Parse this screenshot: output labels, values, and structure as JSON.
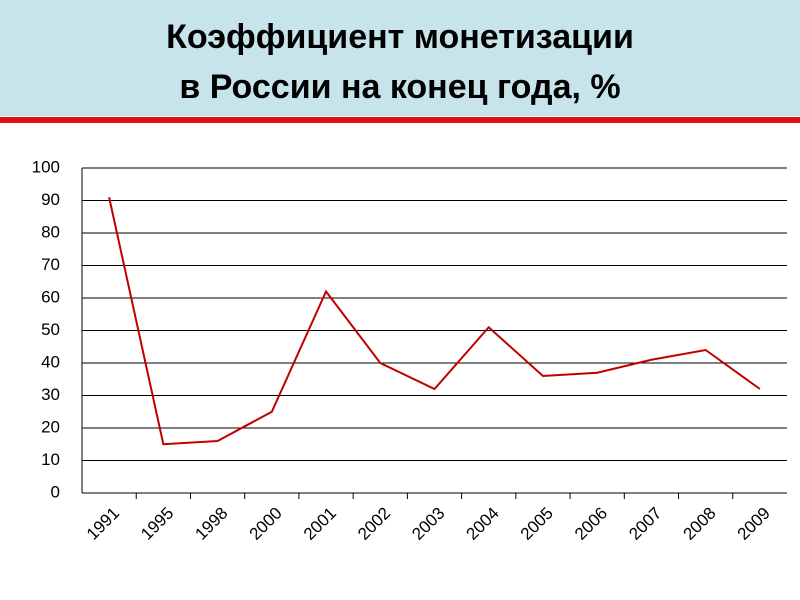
{
  "chart_data": {
    "type": "line",
    "title": "Коэффициент монетизации",
    "subtitle": "в России на конец года, %",
    "categories": [
      "1991",
      "1995",
      "1998",
      "2000",
      "2001",
      "2002",
      "2003",
      "2004",
      "2005",
      "2006",
      "2007",
      "2008",
      "2009"
    ],
    "series": [
      {
        "name": "Коэффициент монетизации",
        "color": "#c00000",
        "values": [
          91,
          15,
          16,
          25,
          62,
          40,
          32,
          51,
          36,
          37,
          41,
          44,
          32
        ]
      }
    ],
    "ylim": [
      0,
      100
    ],
    "yticks": [
      0,
      10,
      20,
      30,
      40,
      50,
      60,
      70,
      80,
      90,
      100
    ],
    "grid": true
  }
}
